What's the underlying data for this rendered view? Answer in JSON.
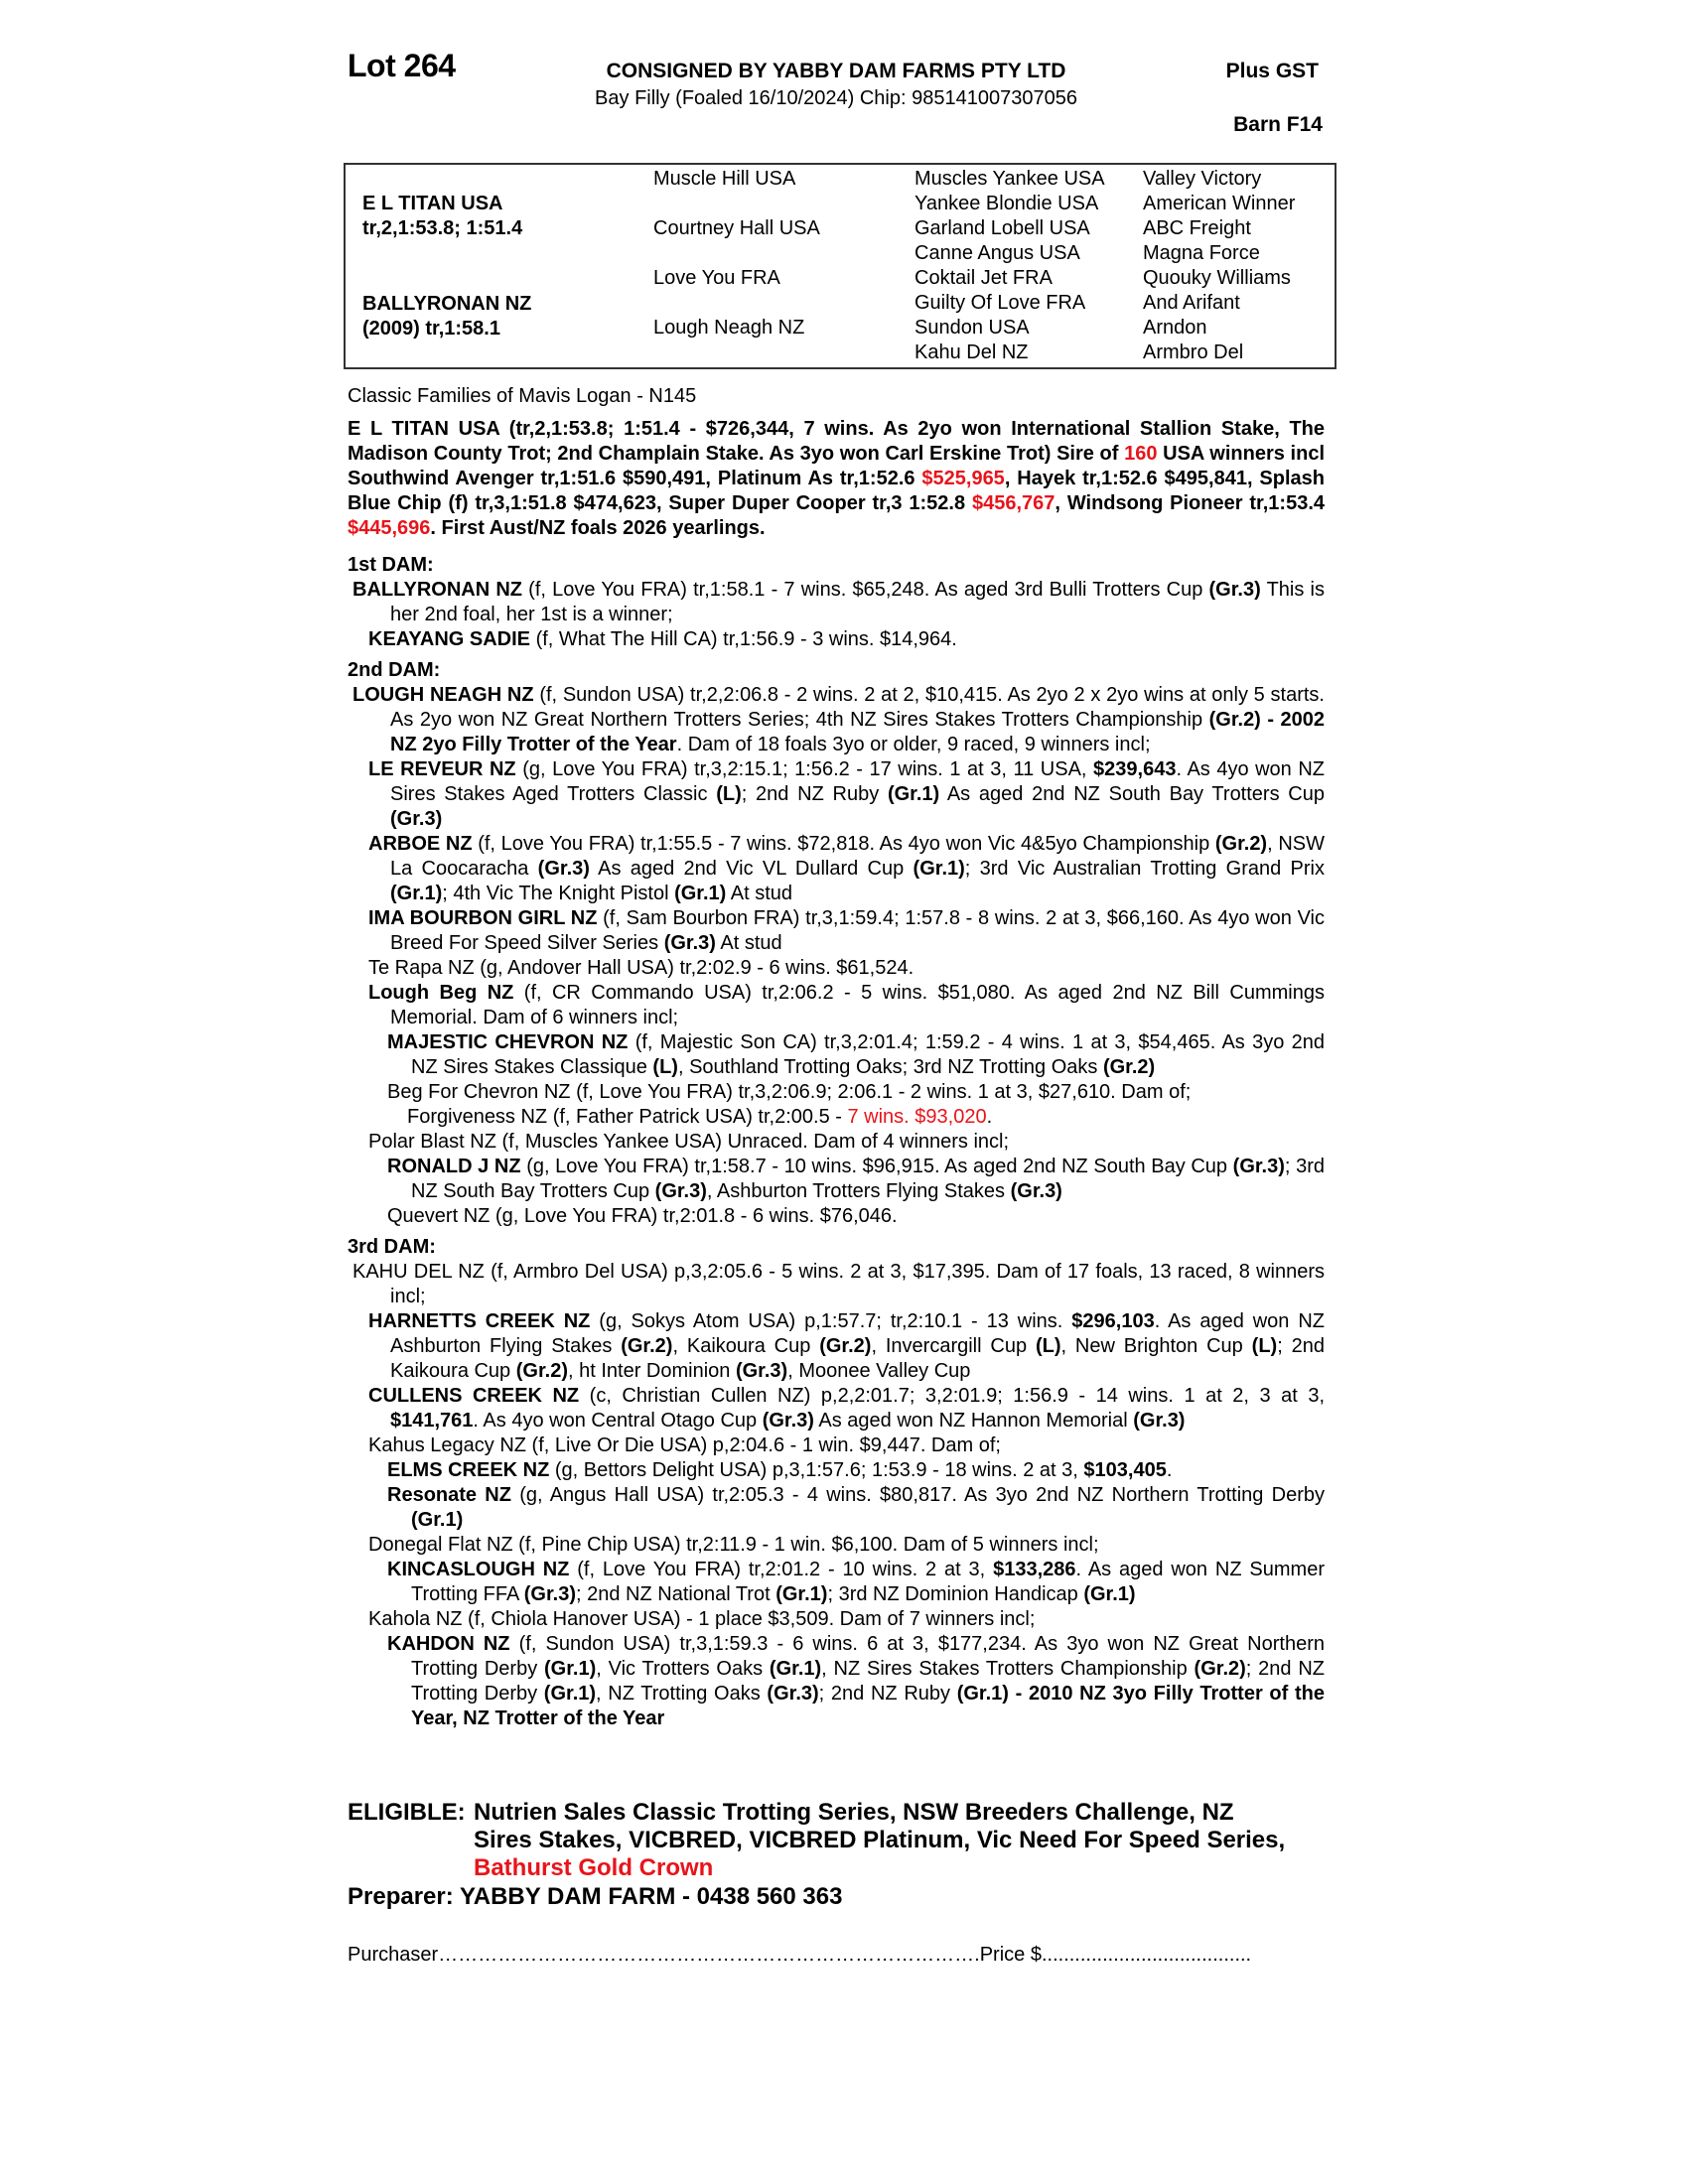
{
  "header": {
    "lot": "Lot 264",
    "consigned": "CONSIGNED BY YABBY DAM FARMS PTY LTD",
    "subline": "Bay Filly (Foaled 16/10/2024) Chip: 985141007307056",
    "gst": "Plus GST",
    "barn": "Barn F14"
  },
  "pedigree": {
    "sire_name": "E L TITAN USA",
    "sire_record": "tr,2,1:53.8; 1:51.4",
    "dam_name": "BALLYRONAN NZ",
    "dam_record": "(2009) tr,1:58.1",
    "gen2": [
      "Muscle Hill USA",
      "Courtney Hall USA",
      "Love You FRA",
      "Lough Neagh NZ"
    ],
    "gen3": [
      "Muscles Yankee USA",
      "Yankee Blondie USA",
      "Garland Lobell USA",
      "Canne Angus USA",
      "Coktail Jet FRA",
      "Guilty Of Love FRA",
      "Sundon USA",
      "Kahu Del NZ"
    ],
    "gen4": [
      "Valley Victory",
      "American Winner",
      "ABC Freight",
      "Magna Force",
      "Quouky Williams",
      "And Arifant",
      "Arndon",
      "Armbro Del"
    ]
  },
  "family": "Classic Families of Mavis Logan - N145",
  "colors": {
    "highlight": "#e8141a",
    "border": "#333333"
  },
  "blocks": [
    {
      "type": "sire",
      "segs": [
        {
          "t": "E L TITAN USA (tr,2,1:53.8; 1:51.4 - $726,344, 7 wins. As 2yo won International Stallion Stake, The Madison County Trot; 2nd Champlain Stake. As 3yo won Carl Erskine Trot) Sire of "
        },
        {
          "t": "160",
          "r": true
        },
        {
          "t": " USA winners incl Southwind Avenger tr,1:51.6 $590,491, Platinum As tr,1:52.6 "
        },
        {
          "t": "$525,965",
          "r": true
        },
        {
          "t": ", Hayek tr,1:52.6 $495,841, Splash Blue Chip (f) tr,3,1:51.8 $474,623, Super Duper Cooper tr,3 1:52.8 "
        },
        {
          "t": "$456,767",
          "r": true
        },
        {
          "t": ", Windsong Pioneer tr,1:53.4 "
        },
        {
          "t": "$445,696",
          "r": true
        },
        {
          "t": ". First Aust/NZ foals 2026 yearlings."
        }
      ]
    },
    {
      "type": "head",
      "segs": [
        {
          "t": "1st DAM:"
        }
      ]
    },
    {
      "type": "para",
      "level": 0,
      "segs": [
        {
          "t": "BALLYRONAN NZ",
          "b": true
        },
        {
          "t": " (f, Love You FRA) tr,1:58.1 - 7 wins. $65,248. As aged 3rd Bulli Trotters Cup "
        },
        {
          "t": "(Gr.3)",
          "b": true
        },
        {
          "t": " This is her 2nd foal, her 1st is a winner;"
        }
      ]
    },
    {
      "type": "para",
      "level": 1,
      "segs": [
        {
          "t": "KEAYANG SADIE",
          "b": true
        },
        {
          "t": " (f, What The Hill CA) tr,1:56.9 - 3 wins. $14,964."
        }
      ]
    },
    {
      "type": "head",
      "segs": [
        {
          "t": "2nd DAM:"
        }
      ]
    },
    {
      "type": "para",
      "level": 0,
      "segs": [
        {
          "t": "LOUGH NEAGH NZ",
          "b": true
        },
        {
          "t": " (f, Sundon USA) tr,2,2:06.8 - 2 wins. 2 at 2, $10,415. As 2yo 2 x 2yo wins at only 5 starts. As 2yo won NZ Great Northern Trotters Series; 4th NZ Sires Stakes Trotters Championship "
        },
        {
          "t": "(Gr.2) - 2002 NZ 2yo Filly Trotter of the Year",
          "b": true
        },
        {
          "t": ". Dam of 18 foals 3yo or older, 9 raced, 9 winners incl;"
        }
      ]
    },
    {
      "type": "para",
      "level": 1,
      "segs": [
        {
          "t": "LE REVEUR NZ",
          "b": true
        },
        {
          "t": " (g, Love You FRA) tr,3,2:15.1; 1:56.2 - 17 wins. 1 at 3, 11 USA, "
        },
        {
          "t": "$239,643",
          "b": true
        },
        {
          "t": ". As 4yo won NZ Sires Stakes Aged Trotters Classic "
        },
        {
          "t": "(L)",
          "b": true
        },
        {
          "t": "; 2nd NZ Ruby "
        },
        {
          "t": "(Gr.1)",
          "b": true
        },
        {
          "t": " As aged 2nd NZ South Bay Trotters Cup "
        },
        {
          "t": "(Gr.3)",
          "b": true
        }
      ]
    },
    {
      "type": "para",
      "level": 1,
      "segs": [
        {
          "t": "ARBOE NZ",
          "b": true
        },
        {
          "t": " (f, Love You FRA) tr,1:55.5 - 7 wins. $72,818. As 4yo won Vic 4&5yo Championship "
        },
        {
          "t": "(Gr.2)",
          "b": true
        },
        {
          "t": ", NSW La Coocaracha "
        },
        {
          "t": "(Gr.3)",
          "b": true
        },
        {
          "t": " As aged 2nd Vic VL Dullard Cup "
        },
        {
          "t": "(Gr.1)",
          "b": true
        },
        {
          "t": "; 3rd Vic Australian Trotting Grand Prix "
        },
        {
          "t": "(Gr.1)",
          "b": true
        },
        {
          "t": "; 4th Vic The Knight Pistol "
        },
        {
          "t": "(Gr.1)",
          "b": true
        },
        {
          "t": " At stud"
        }
      ]
    },
    {
      "type": "para",
      "level": 1,
      "segs": [
        {
          "t": "IMA BOURBON GIRL NZ",
          "b": true
        },
        {
          "t": " (f, Sam Bourbon FRA) tr,3,1:59.4; 1:57.8 - 8 wins. 2 at 3, $66,160. As 4yo won Vic Breed For Speed Silver Series "
        },
        {
          "t": "(Gr.3)",
          "b": true
        },
        {
          "t": " At stud"
        }
      ]
    },
    {
      "type": "para",
      "level": 1,
      "segs": [
        {
          "t": "Te Rapa NZ (g, Andover Hall USA) tr,2:02.9 - 6 wins. $61,524."
        }
      ]
    },
    {
      "type": "para",
      "level": 1,
      "segs": [
        {
          "t": "Lough Beg NZ",
          "b": true
        },
        {
          "t": " (f, CR Commando USA) tr,2:06.2 - 5 wins. $51,080. As aged 2nd NZ Bill Cummings Memorial. Dam of 6 winners incl;"
        }
      ]
    },
    {
      "type": "para",
      "level": 2,
      "segs": [
        {
          "t": "MAJESTIC CHEVRON NZ",
          "b": true
        },
        {
          "t": " (f, Majestic Son CA) tr,3,2:01.4; 1:59.2 - 4 wins. 1 at 3, $54,465. As 3yo 2nd NZ Sires Stakes Classique "
        },
        {
          "t": "(L)",
          "b": true
        },
        {
          "t": ", Southland Trotting Oaks; 3rd NZ Trotting Oaks "
        },
        {
          "t": "(Gr.2)",
          "b": true
        }
      ]
    },
    {
      "type": "para",
      "level": 2,
      "segs": [
        {
          "t": "Beg For Chevron NZ (f, Love You FRA) tr,3,2:06.9; 2:06.1 - 2 wins. 1 at 3, $27,610. Dam of;"
        }
      ]
    },
    {
      "type": "para",
      "level": 3,
      "segs": [
        {
          "t": "Forgiveness NZ (f, Father Patrick USA) tr,2:00.5 - "
        },
        {
          "t": "7 wins. $93,020",
          "r": true
        },
        {
          "t": "."
        }
      ]
    },
    {
      "type": "para",
      "level": 1,
      "segs": [
        {
          "t": "Polar Blast NZ (f, Muscles Yankee USA) Unraced. Dam of 4 winners incl;"
        }
      ]
    },
    {
      "type": "para",
      "level": 2,
      "segs": [
        {
          "t": "RONALD J NZ",
          "b": true
        },
        {
          "t": " (g, Love You FRA) tr,1:58.7 - 10 wins. $96,915. As aged 2nd NZ South Bay Cup "
        },
        {
          "t": "(Gr.3)",
          "b": true
        },
        {
          "t": "; 3rd NZ South Bay Trotters Cup "
        },
        {
          "t": "(Gr.3)",
          "b": true
        },
        {
          "t": ", Ashburton Trotters Flying Stakes "
        },
        {
          "t": "(Gr.3)",
          "b": true
        }
      ]
    },
    {
      "type": "para",
      "level": 2,
      "segs": [
        {
          "t": "Quevert NZ (g, Love You FRA) tr,2:01.8 - 6 wins. $76,046."
        }
      ]
    },
    {
      "type": "head",
      "segs": [
        {
          "t": "3rd DAM:"
        }
      ]
    },
    {
      "type": "para",
      "level": 0,
      "segs": [
        {
          "t": "KAHU DEL NZ (f, Armbro Del USA) p,3,2:05.6 - 5 wins. 2 at 3, $17,395. Dam of 17 foals, 13 raced, 8 winners incl;"
        }
      ]
    },
    {
      "type": "para",
      "level": 1,
      "segs": [
        {
          "t": "HARNETTS CREEK NZ",
          "b": true
        },
        {
          "t": " (g, Sokys Atom USA) p,1:57.7; tr,2:10.1 - 13 wins. "
        },
        {
          "t": "$296,103",
          "b": true
        },
        {
          "t": ". As aged won NZ Ashburton Flying Stakes "
        },
        {
          "t": "(Gr.2)",
          "b": true
        },
        {
          "t": ", Kaikoura Cup "
        },
        {
          "t": "(Gr.2)",
          "b": true
        },
        {
          "t": ", Invercargill Cup "
        },
        {
          "t": "(L)",
          "b": true
        },
        {
          "t": ", New Brighton Cup "
        },
        {
          "t": "(L)",
          "b": true
        },
        {
          "t": "; 2nd Kaikoura Cup "
        },
        {
          "t": "(Gr.2)",
          "b": true
        },
        {
          "t": ", ht Inter Dominion "
        },
        {
          "t": "(Gr.3)",
          "b": true
        },
        {
          "t": ", Moonee Valley Cup"
        }
      ]
    },
    {
      "type": "para",
      "level": 1,
      "segs": [
        {
          "t": "CULLENS CREEK NZ",
          "b": true
        },
        {
          "t": " (c, Christian Cullen NZ) p,2,2:01.7; 3,2:01.9; 1:56.9 - 14 wins. 1 at 2, 3 at 3, "
        },
        {
          "t": "$141,761",
          "b": true
        },
        {
          "t": ". As 4yo won Central Otago Cup "
        },
        {
          "t": "(Gr.3)",
          "b": true
        },
        {
          "t": " As aged won NZ Hannon Memorial "
        },
        {
          "t": "(Gr.3)",
          "b": true
        }
      ]
    },
    {
      "type": "para",
      "level": 1,
      "segs": [
        {
          "t": "Kahus Legacy NZ (f, Live Or Die USA) p,2:04.6 - 1 win. $9,447. Dam of;"
        }
      ]
    },
    {
      "type": "para",
      "level": 2,
      "segs": [
        {
          "t": "ELMS CREEK NZ",
          "b": true
        },
        {
          "t": " (g, Bettors Delight USA) p,3,1:57.6; 1:53.9 - 18 wins. 2 at 3, "
        },
        {
          "t": "$103,405",
          "b": true
        },
        {
          "t": "."
        }
      ]
    },
    {
      "type": "para",
      "level": 2,
      "segs": [
        {
          "t": "Resonate NZ",
          "b": true
        },
        {
          "t": " (g, Angus Hall USA) tr,2:05.3 - 4 wins. $80,817. As 3yo 2nd NZ Northern Trotting Derby "
        },
        {
          "t": "(Gr.1)",
          "b": true
        }
      ]
    },
    {
      "type": "para",
      "level": 1,
      "segs": [
        {
          "t": "Donegal Flat NZ (f, Pine Chip USA) tr,2:11.9 - 1 win. $6,100. Dam of 5 winners incl;"
        }
      ]
    },
    {
      "type": "para",
      "level": 2,
      "segs": [
        {
          "t": "KINCASLOUGH NZ",
          "b": true
        },
        {
          "t": " (f, Love You FRA) tr,2:01.2 - 10 wins. 2 at 3, "
        },
        {
          "t": "$133,286",
          "b": true
        },
        {
          "t": ". As aged won NZ Summer Trotting FFA "
        },
        {
          "t": "(Gr.3)",
          "b": true
        },
        {
          "t": "; 2nd NZ National Trot "
        },
        {
          "t": "(Gr.1)",
          "b": true
        },
        {
          "t": "; 3rd NZ Dominion Handicap "
        },
        {
          "t": "(Gr.1)",
          "b": true
        }
      ]
    },
    {
      "type": "para",
      "level": 1,
      "segs": [
        {
          "t": "Kahola NZ (f, Chiola Hanover USA) - 1 place $3,509. Dam of 7 winners incl;"
        }
      ]
    },
    {
      "type": "para",
      "level": 2,
      "segs": [
        {
          "t": "KAHDON NZ",
          "b": true
        },
        {
          "t": " (f, Sundon USA) tr,3,1:59.3 - 6 wins. 6 at 3, $177,234. As 3yo won NZ Great Northern Trotting Derby "
        },
        {
          "t": "(Gr.1)",
          "b": true
        },
        {
          "t": ", Vic Trotters Oaks "
        },
        {
          "t": "(Gr.1)",
          "b": true
        },
        {
          "t": ", NZ Sires Stakes Trotters Championship "
        },
        {
          "t": "(Gr.2)",
          "b": true
        },
        {
          "t": "; 2nd NZ Trotting Derby "
        },
        {
          "t": "(Gr.1)",
          "b": true
        },
        {
          "t": ", NZ Trotting Oaks "
        },
        {
          "t": "(Gr.3)",
          "b": true
        },
        {
          "t": "; 2nd NZ Ruby "
        },
        {
          "t": "(Gr.1) - 2010 NZ 3yo Filly Trotter of the Year, NZ Trotter of the Year",
          "b": true
        }
      ]
    }
  ],
  "eligible": {
    "label": "ELIGIBLE:",
    "text": "Nutrien Sales Classic Trotting Series, NSW Breeders Challenge, NZ Sires Stakes, VICBRED, VICBRED Platinum, Vic Need For Speed Series,",
    "highlight": "Bathurst Gold Crown"
  },
  "preparer": "Preparer: YABBY DAM FARM - 0438 560 363",
  "purchaser": "Purchaser……………………………………………………………………….Price $......................................"
}
